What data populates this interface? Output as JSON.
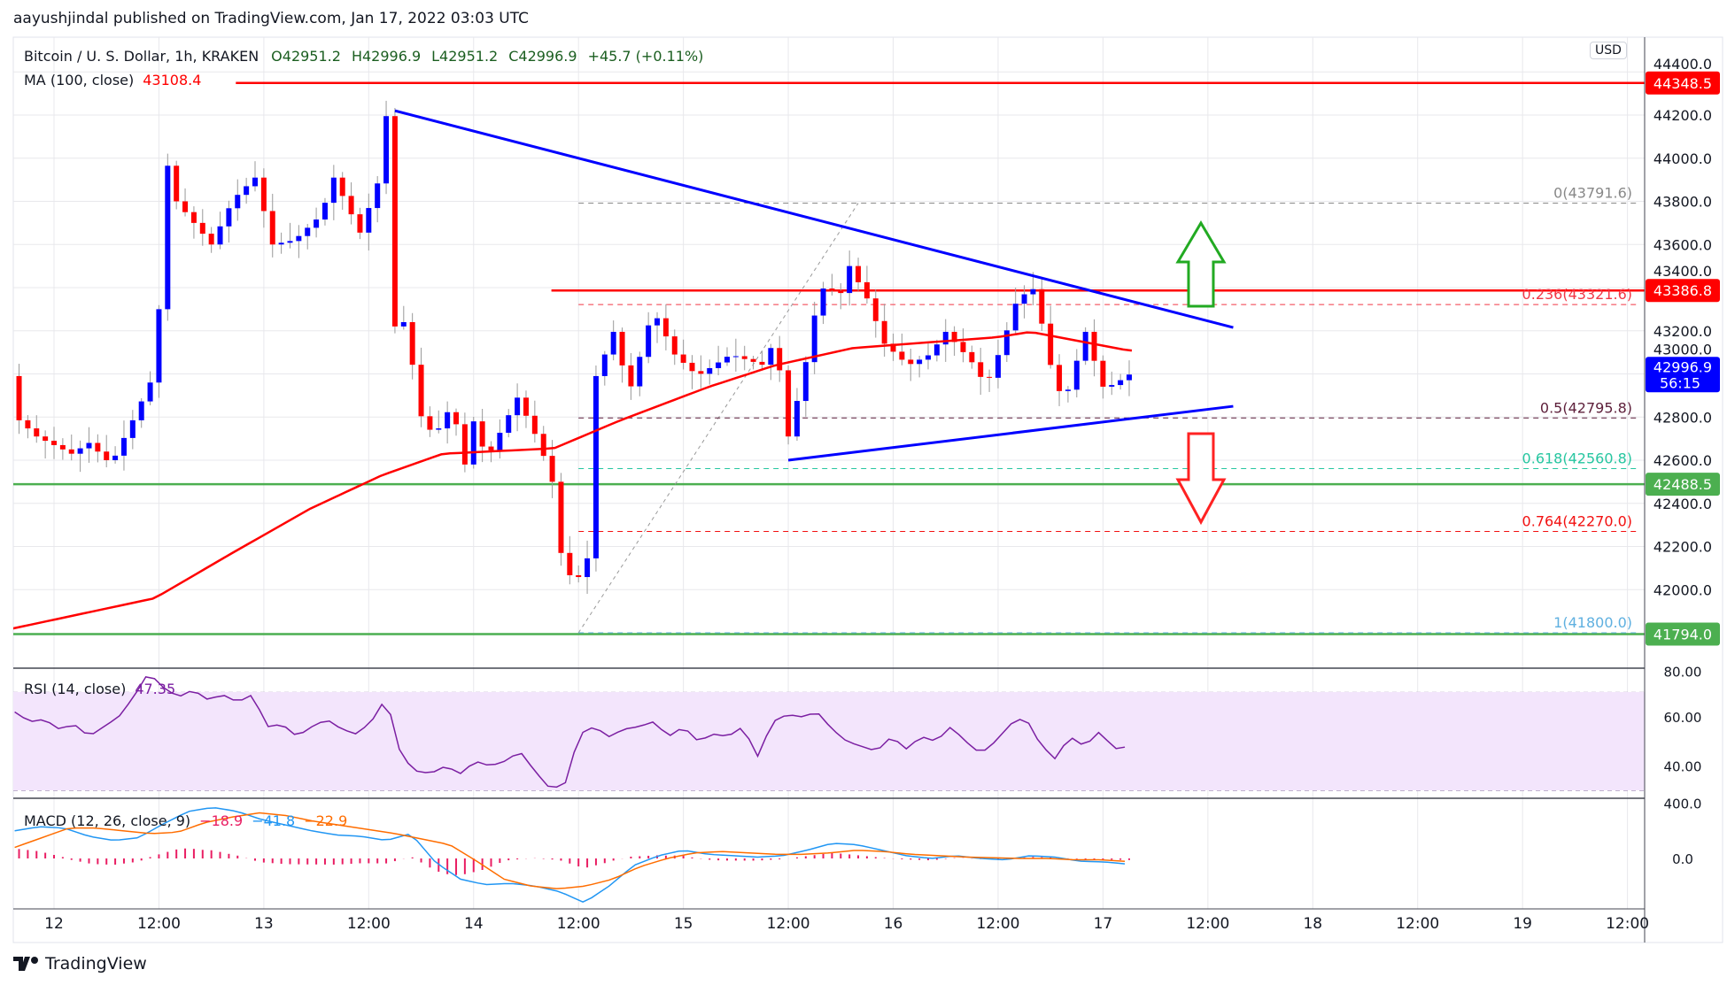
{
  "header": {
    "published": "aayushjindal published on TradingView.com, Jan 17, 2022 03:03 UTC"
  },
  "legend": {
    "symbol": "Bitcoin / U. S. Dollar, 1h, KRAKEN",
    "open": "O42951.2",
    "high": "H42996.9",
    "low": "L42951.2",
    "close": "C42996.9",
    "change": "+45.7 (+0.11%)",
    "ma_label": "MA (100, close)",
    "ma_value": "43108.4",
    "rsi_label": "RSI (14, close)",
    "rsi_value": "47.35",
    "macd_label": "MACD (12, 26, close, 9)",
    "macd_hist": "−18.9",
    "macd_value": "−41.8",
    "macd_signal": "−22.9"
  },
  "price_axis": {
    "currency": "USD",
    "ticks": [
      "44400.0",
      "44200.0",
      "44000.0",
      "43800.0",
      "43600.0",
      "43400.0",
      "43200.0",
      "43000.0",
      "42800.0",
      "42600.0",
      "42400.0",
      "42200.0",
      "42000.0"
    ],
    "tick_values": [
      44400,
      44200,
      44000,
      43800,
      43600,
      43400,
      43200,
      43000,
      42800,
      42600,
      42400,
      42200,
      42000
    ],
    "tags": [
      {
        "text": "44348.5",
        "value": 44348.5,
        "color": "#ff0000"
      },
      {
        "text": "43386.8",
        "value": 43386.8,
        "color": "#ff0000"
      },
      {
        "text": "42996.9",
        "sub": "56:15",
        "value": 42996.9,
        "color": "#0000ff"
      },
      {
        "text": "42488.5",
        "value": 42488.5,
        "color": "#4caf50"
      },
      {
        "text": "41794.0",
        "value": 41794.0,
        "color": "#4caf50"
      }
    ]
  },
  "rsi_axis": {
    "ticks": [
      "80.00",
      "60.00",
      "40.00"
    ],
    "values": [
      80,
      60,
      40
    ]
  },
  "macd_axis": {
    "ticks": [
      "400.0",
      "0.0"
    ],
    "values": [
      400,
      0
    ]
  },
  "time_axis": {
    "labels": [
      "12",
      "12:00",
      "13",
      "12:00",
      "14",
      "12:00",
      "15",
      "12:00",
      "16",
      "12:00",
      "17",
      "12:00",
      "18",
      "12:00",
      "19",
      "12:00"
    ]
  },
  "fib": [
    {
      "text": "0(43791.6)",
      "value": 43791.6,
      "color": "#888888"
    },
    {
      "text": "0.236(43321.6)",
      "value": 43321.6,
      "color": "#f23645"
    },
    {
      "text": "0.5(42795.8)",
      "value": 42795.8,
      "color": "#5d1f3a"
    },
    {
      "text": "0.618(42560.8)",
      "value": 42560.8,
      "color": "#26c6a0"
    },
    {
      "text": "0.764(42270.0)",
      "value": 42270.0,
      "color": "#f21010"
    },
    {
      "text": "1(41800.0)",
      "value": 41800.0,
      "color": "#5fb0e0"
    }
  ],
  "colors": {
    "up": "#0000ff",
    "down": "#ff0000",
    "ma": "#ff0000",
    "rsi": "#7b1fa2",
    "macd": "#2196f3",
    "signal": "#ff6d00",
    "hist": "#e91e63",
    "support": "#4caf50",
    "resistance": "#ff0000",
    "trend": "#0000ff"
  },
  "chart_data": {
    "type": "candlestick",
    "title": "Bitcoin / U. S. Dollar, 1h, KRAKEN",
    "hour_origin": "Jan 12 00:00 UTC",
    "close_keypoints_hours_price": [
      [
        -4.5,
        42990
      ],
      [
        -4,
        42785
      ],
      [
        -2,
        42710
      ],
      [
        2,
        42630
      ],
      [
        4,
        42680
      ],
      [
        6.5,
        42580
      ],
      [
        9,
        42785
      ],
      [
        11,
        42960
      ],
      [
        12,
        43300
      ],
      [
        13,
        43965
      ],
      [
        14,
        43800
      ],
      [
        16,
        43700
      ],
      [
        18,
        43600
      ],
      [
        20.5,
        43810
      ],
      [
        23,
        43910
      ],
      [
        25,
        43600
      ],
      [
        27.5,
        43620
      ],
      [
        30.5,
        43735
      ],
      [
        32,
        43910
      ],
      [
        35,
        43655
      ],
      [
        37.5,
        43940
      ],
      [
        38,
        44195
      ],
      [
        39,
        43220
      ],
      [
        40.5,
        43250
      ],
      [
        41.5,
        42835
      ],
      [
        43.5,
        42710
      ],
      [
        45.5,
        42860
      ],
      [
        47,
        42580
      ],
      [
        48,
        42780
      ],
      [
        49.5,
        42605
      ],
      [
        53,
        42890
      ],
      [
        55.5,
        42680
      ],
      [
        57,
        42500
      ],
      [
        58,
        42170
      ],
      [
        59.5,
        42015
      ],
      [
        61,
        42145
      ],
      [
        62,
        42990
      ],
      [
        63,
        43090
      ],
      [
        64,
        43195
      ],
      [
        65.8,
        42915
      ],
      [
        67.3,
        43120
      ],
      [
        68.5,
        43300
      ],
      [
        71,
        43090
      ],
      [
        73.6,
        42990
      ],
      [
        77.4,
        43090
      ],
      [
        81.2,
        43040
      ],
      [
        82.5,
        43170
      ],
      [
        84,
        42710
      ],
      [
        85.7,
        42990
      ],
      [
        87.6,
        43400
      ],
      [
        90,
        43375
      ],
      [
        91,
        43500
      ],
      [
        93,
        43350
      ],
      [
        95,
        43140
      ],
      [
        97.7,
        43040
      ],
      [
        100.2,
        43090
      ],
      [
        102,
        43195
      ],
      [
        105.3,
        43040
      ],
      [
        106.6,
        42940
      ],
      [
        108.5,
        43140
      ],
      [
        110.2,
        43350
      ],
      [
        112.3,
        43400
      ],
      [
        113.6,
        43090
      ],
      [
        115.5,
        42860
      ],
      [
        118,
        43195
      ],
      [
        119.9,
        42940
      ],
      [
        121.2,
        42950
      ],
      [
        123,
        42996.9
      ]
    ],
    "ma100_keypoints": [
      [
        -4.7,
        41820
      ],
      [
        11.5,
        41960
      ],
      [
        20.4,
        42170
      ],
      [
        29.3,
        42375
      ],
      [
        37.5,
        42530
      ],
      [
        44.5,
        42630
      ],
      [
        57.2,
        42655
      ],
      [
        64.8,
        42785
      ],
      [
        74.9,
        42940
      ],
      [
        82.5,
        43040
      ],
      [
        91.4,
        43120
      ],
      [
        107.9,
        43170
      ],
      [
        111.7,
        43195
      ],
      [
        123,
        43108
      ]
    ],
    "horizontal_lines": [
      {
        "value": 44348.5,
        "from_hour": 20.8,
        "kind": "resistance"
      },
      {
        "value": 43386.8,
        "from_hour": 56.9,
        "kind": "resistance"
      },
      {
        "value": 42488.5,
        "from_hour": -5,
        "kind": "support"
      },
      {
        "value": 41794.0,
        "from_hour": -5,
        "kind": "support"
      }
    ],
    "trendlines": [
      {
        "from": [
          39,
          44220
        ],
        "to": [
          134.9,
          43215
        ]
      },
      {
        "from": [
          84,
          42600
        ],
        "to": [
          134.9,
          42850
        ]
      }
    ],
    "fib_anchor": {
      "from": [
        60,
        41800
      ],
      "to": [
        92,
        43791.6
      ]
    },
    "rsi_series": [
      62,
      58,
      59,
      55,
      57,
      52,
      56,
      60,
      68,
      78,
      72,
      68,
      71,
      67,
      69,
      66,
      69,
      56,
      57,
      52,
      56,
      59,
      55,
      53,
      58,
      68,
      44,
      38,
      37,
      40,
      37,
      42,
      40,
      42,
      46,
      38,
      31,
      32,
      53,
      56,
      52,
      55,
      56,
      58,
      52,
      56,
      50,
      53,
      52,
      56,
      44,
      58,
      61,
      60,
      62,
      55,
      50,
      48,
      46,
      52,
      47,
      52,
      50,
      56,
      50,
      45,
      50,
      57,
      60,
      49,
      43,
      52,
      48,
      54,
      47,
      48
    ],
    "macd_series": [
      200,
      230,
      220,
      160,
      130,
      150,
      250,
      340,
      370,
      340,
      280,
      240,
      200,
      170,
      160,
      130,
      180,
      -30,
      -150,
      -190,
      -180,
      -200,
      -240,
      -320,
      -200,
      -50,
      20,
      60,
      30,
      20,
      10,
      20,
      60,
      110,
      100,
      60,
      20,
      0,
      20,
      0,
      -10,
      20,
      10,
      -20,
      -25,
      -42
    ],
    "signal_series": [
      80,
      150,
      220,
      220,
      200,
      180,
      190,
      260,
      300,
      330,
      310,
      270,
      240,
      210,
      180,
      140,
      100,
      -20,
      -150,
      -200,
      -220,
      -200,
      -150,
      -60,
      0,
      40,
      50,
      40,
      30,
      30,
      40,
      60,
      50,
      30,
      20,
      10,
      5,
      0,
      0,
      -10,
      -10,
      -23
    ],
    "price_range": [
      41650,
      44450
    ]
  }
}
